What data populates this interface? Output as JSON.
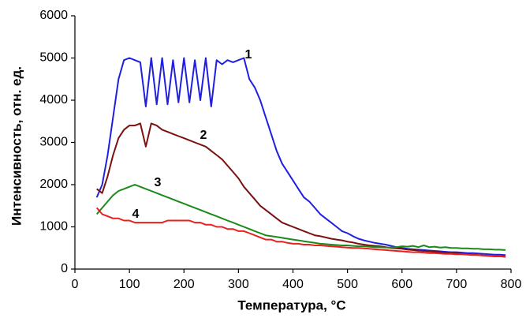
{
  "chart_data": {
    "type": "line",
    "xlabel": "Температура, °C",
    "ylabel": "Интенсивность, отн. ед.",
    "xlim": [
      0,
      800
    ],
    "xticks": [
      0,
      100,
      200,
      300,
      400,
      500,
      600,
      700,
      800
    ],
    "ylim": [
      0,
      6000
    ],
    "yticks": [
      0,
      1000,
      2000,
      3000,
      4000,
      5000,
      6000
    ],
    "grid": false,
    "x": [
      40,
      50,
      60,
      70,
      80,
      90,
      100,
      110,
      120,
      130,
      140,
      150,
      160,
      170,
      180,
      190,
      200,
      210,
      220,
      230,
      240,
      250,
      260,
      270,
      280,
      290,
      300,
      310,
      320,
      330,
      340,
      350,
      360,
      370,
      380,
      390,
      400,
      410,
      420,
      430,
      440,
      450,
      460,
      470,
      480,
      490,
      500,
      510,
      520,
      530,
      540,
      550,
      560,
      570,
      580,
      590,
      600,
      610,
      620,
      630,
      640,
      650,
      660,
      670,
      680,
      690,
      700,
      710,
      720,
      730,
      740,
      750,
      760,
      770,
      780,
      790
    ],
    "series": [
      {
        "name": "1",
        "color": "#1f1fe0",
        "values": [
          1700,
          2000,
          2700,
          3600,
          4500,
          4950,
          5000,
          4950,
          4900,
          3850,
          5000,
          3900,
          5000,
          3900,
          4950,
          3950,
          5000,
          3950,
          4950,
          4000,
          5000,
          3850,
          4950,
          4850,
          4950,
          4900,
          4950,
          5000,
          4500,
          4300,
          4000,
          3600,
          3200,
          2800,
          2500,
          2300,
          2100,
          1900,
          1700,
          1600,
          1450,
          1300,
          1200,
          1100,
          1000,
          900,
          850,
          780,
          720,
          680,
          650,
          620,
          600,
          580,
          550,
          520,
          500,
          480,
          470,
          460,
          450,
          440,
          430,
          420,
          410,
          400,
          400,
          390,
          380,
          380,
          370,
          360,
          350,
          340,
          340,
          330
        ]
      },
      {
        "name": "2",
        "color": "#7a1010",
        "values": [
          1900,
          1800,
          2200,
          2700,
          3100,
          3300,
          3400,
          3400,
          3450,
          2900,
          3450,
          3400,
          3300,
          3250,
          3200,
          3150,
          3100,
          3050,
          3000,
          2950,
          2900,
          2800,
          2700,
          2600,
          2450,
          2300,
          2150,
          1950,
          1800,
          1650,
          1500,
          1400,
          1300,
          1200,
          1100,
          1050,
          1000,
          950,
          900,
          850,
          800,
          780,
          750,
          720,
          700,
          680,
          650,
          630,
          600,
          580,
          560,
          550,
          540,
          520,
          500,
          490,
          480,
          460,
          450,
          440,
          430,
          420,
          410,
          400,
          390,
          380,
          370,
          360,
          350,
          340,
          330,
          320,
          310,
          300,
          300,
          290
        ]
      },
      {
        "name": "3",
        "color": "#1a8a1a",
        "values": [
          1300,
          1450,
          1600,
          1750,
          1850,
          1900,
          1950,
          2000,
          1950,
          1900,
          1850,
          1800,
          1750,
          1700,
          1650,
          1600,
          1550,
          1500,
          1450,
          1400,
          1350,
          1300,
          1250,
          1200,
          1150,
          1100,
          1050,
          1000,
          950,
          900,
          850,
          800,
          780,
          760,
          740,
          720,
          700,
          680,
          660,
          640,
          620,
          600,
          590,
          580,
          570,
          560,
          560,
          550,
          540,
          540,
          530,
          520,
          520,
          510,
          510,
          520,
          540,
          530,
          550,
          520,
          560,
          520,
          530,
          510,
          520,
          500,
          500,
          490,
          490,
          480,
          480,
          470,
          470,
          460,
          460,
          450
        ]
      },
      {
        "name": "4",
        "color": "#e82020",
        "values": [
          1450,
          1300,
          1250,
          1200,
          1200,
          1150,
          1150,
          1100,
          1100,
          1100,
          1100,
          1100,
          1100,
          1150,
          1150,
          1150,
          1150,
          1150,
          1100,
          1100,
          1050,
          1050,
          1000,
          1000,
          950,
          950,
          900,
          900,
          850,
          800,
          750,
          700,
          700,
          650,
          650,
          620,
          600,
          600,
          580,
          580,
          560,
          560,
          550,
          540,
          530,
          520,
          510,
          500,
          500,
          490,
          480,
          470,
          460,
          450,
          440,
          430,
          420,
          410,
          400,
          400,
          390,
          380,
          380,
          370,
          360,
          360,
          350,
          350,
          340,
          330,
          330,
          320,
          320,
          310,
          300,
          300
        ]
      }
    ]
  }
}
